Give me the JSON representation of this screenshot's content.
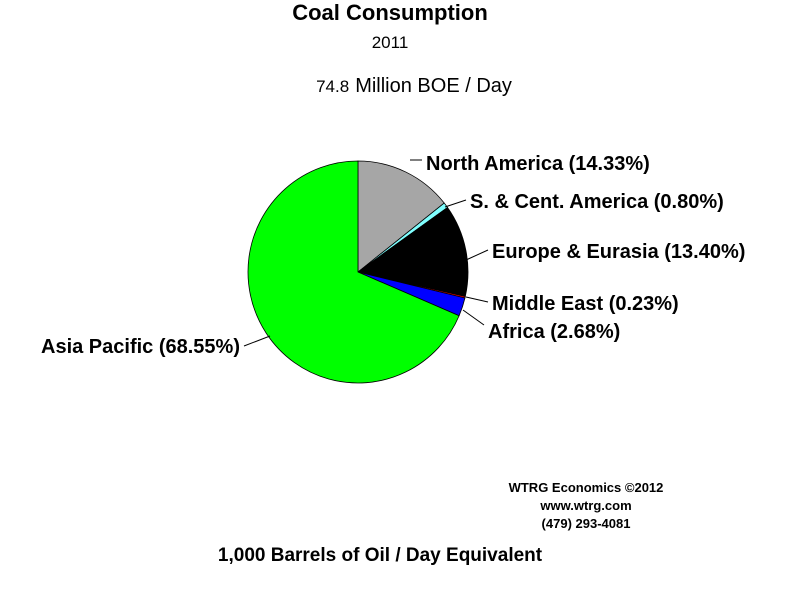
{
  "chart_data": {
    "type": "pie",
    "title": "Coal Consumption",
    "subtitle": "2011",
    "total_value": "74.8",
    "total_unit": "Million BOE / Day",
    "slices": [
      {
        "label": "North America (14.33%)",
        "value": 14.33,
        "color": "#A6A6A6"
      },
      {
        "label": "S. & Cent. America (0.80%)",
        "value": 0.8,
        "color": "#80FFFF"
      },
      {
        "label": "Europe & Eurasia (13.40%)",
        "value": 13.4,
        "color": "#000000"
      },
      {
        "label": "Middle East (0.23%)",
        "value": 0.23,
        "color": "#FF0000"
      },
      {
        "label": "Africa (2.68%)",
        "value": 2.68,
        "color": "#0000FF"
      },
      {
        "label": "Asia Pacific (68.55%)",
        "value": 68.55,
        "color": "#00FF00"
      }
    ],
    "footer": "1,000 Barrels of Oil / Day Equivalent"
  },
  "credit": {
    "line1": "WTRG Economics  ©2012",
    "line2": "www.wtrg.com",
    "line3": "(479) 293-4081"
  }
}
